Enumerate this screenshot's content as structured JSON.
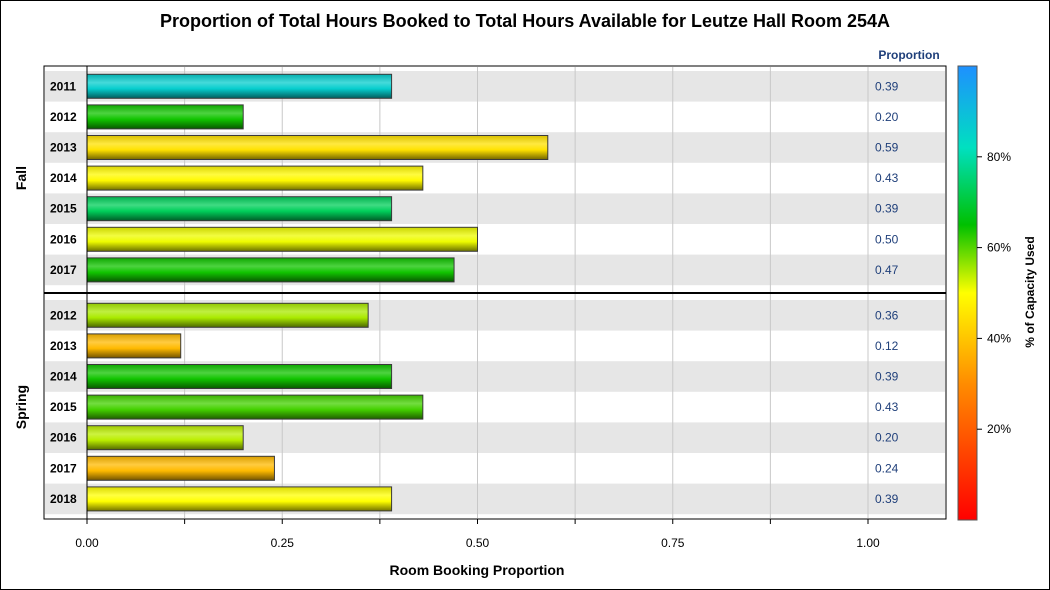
{
  "chart_data": {
    "type": "bar",
    "orientation": "horizontal",
    "title": "Proportion of Total Hours Booked to Total Hours Available for Leutze Hall Room 254A",
    "xlabel": "Room Booking Proportion",
    "xlim": [
      0,
      1.1
    ],
    "xticks": [
      "0.00",
      "0.25",
      "0.50",
      "0.75",
      "1.00"
    ],
    "grid": true,
    "value_column_header": "Proportion",
    "colorbar": {
      "label": "% of Capacity Used",
      "ticks": [
        "20%",
        "40%",
        "60%",
        "80%"
      ],
      "tick_values": [
        20,
        40,
        60,
        80
      ],
      "range": [
        0,
        100
      ],
      "palette": [
        "#ff0000",
        "#ff8c00",
        "#ffff00",
        "#00c000",
        "#00e0c0",
        "#1e90ff"
      ]
    },
    "groups": [
      {
        "name": "Fall",
        "bars": [
          {
            "category": "2011",
            "value": 0.39,
            "label": "0.39",
            "capacity": 86
          },
          {
            "category": "2012",
            "value": 0.2,
            "label": "0.20",
            "capacity": 64
          },
          {
            "category": "2013",
            "value": 0.59,
            "label": "0.59",
            "capacity": 45
          },
          {
            "category": "2014",
            "value": 0.43,
            "label": "0.43",
            "capacity": 49
          },
          {
            "category": "2015",
            "value": 0.39,
            "label": "0.39",
            "capacity": 73
          },
          {
            "category": "2016",
            "value": 0.5,
            "label": "0.50",
            "capacity": 51
          },
          {
            "category": "2017",
            "value": 0.47,
            "label": "0.47",
            "capacity": 64
          }
        ]
      },
      {
        "name": "Spring",
        "bars": [
          {
            "category": "2012",
            "value": 0.36,
            "label": "0.36",
            "capacity": 55
          },
          {
            "category": "2013",
            "value": 0.12,
            "label": "0.12",
            "capacity": 38
          },
          {
            "category": "2014",
            "value": 0.39,
            "label": "0.39",
            "capacity": 64
          },
          {
            "category": "2015",
            "value": 0.43,
            "label": "0.43",
            "capacity": 61
          },
          {
            "category": "2016",
            "value": 0.2,
            "label": "0.20",
            "capacity": 54
          },
          {
            "category": "2017",
            "value": 0.24,
            "label": "0.24",
            "capacity": 38
          },
          {
            "category": "2018",
            "value": 0.39,
            "label": "0.39",
            "capacity": 50
          }
        ]
      }
    ]
  }
}
